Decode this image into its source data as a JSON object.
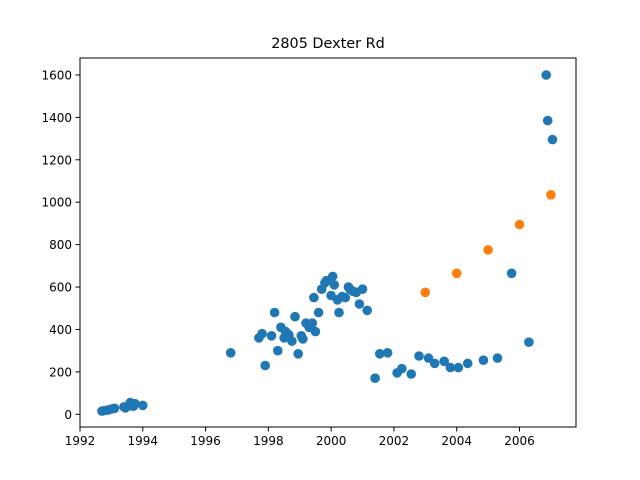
{
  "chart_data": {
    "type": "scatter",
    "title": "2805 Dexter Rd",
    "xlabel": "",
    "ylabel": "",
    "xlim": [
      1992,
      2007.8
    ],
    "ylim": [
      -60,
      1680
    ],
    "x_ticks": [
      1992,
      1994,
      1996,
      1998,
      2000,
      2002,
      2004,
      2006
    ],
    "y_ticks": [
      0,
      200,
      400,
      600,
      800,
      1000,
      1200,
      1400,
      1600
    ],
    "grid": false,
    "legend": "none",
    "series": [
      {
        "color": "#1f77b4",
        "points": [
          [
            1992.7,
            15
          ],
          [
            1992.8,
            18
          ],
          [
            1992.9,
            20
          ],
          [
            1993.0,
            25
          ],
          [
            1993.1,
            28
          ],
          [
            1993.4,
            35
          ],
          [
            1993.45,
            30
          ],
          [
            1993.55,
            40
          ],
          [
            1993.6,
            55
          ],
          [
            1993.65,
            45
          ],
          [
            1993.7,
            38
          ],
          [
            1993.75,
            50
          ],
          [
            1994.0,
            42
          ],
          [
            1996.8,
            290
          ],
          [
            1997.7,
            360
          ],
          [
            1997.8,
            380
          ],
          [
            1997.9,
            230
          ],
          [
            1998.1,
            370
          ],
          [
            1998.2,
            480
          ],
          [
            1998.3,
            300
          ],
          [
            1998.4,
            410
          ],
          [
            1998.5,
            360
          ],
          [
            1998.55,
            390
          ],
          [
            1998.65,
            375
          ],
          [
            1998.75,
            345
          ],
          [
            1998.85,
            460
          ],
          [
            1998.95,
            285
          ],
          [
            1999.05,
            370
          ],
          [
            1999.1,
            355
          ],
          [
            1999.2,
            430
          ],
          [
            1999.3,
            410
          ],
          [
            1999.4,
            430
          ],
          [
            1999.45,
            550
          ],
          [
            1999.5,
            390
          ],
          [
            1999.6,
            480
          ],
          [
            1999.7,
            590
          ],
          [
            1999.8,
            620
          ],
          [
            1999.85,
            630
          ],
          [
            2000.0,
            560
          ],
          [
            2000.05,
            650
          ],
          [
            2000.1,
            610
          ],
          [
            2000.2,
            540
          ],
          [
            2000.25,
            480
          ],
          [
            2000.35,
            555
          ],
          [
            2000.45,
            550
          ],
          [
            2000.55,
            600
          ],
          [
            2000.6,
            590
          ],
          [
            2000.7,
            580
          ],
          [
            2000.8,
            575
          ],
          [
            2000.9,
            520
          ],
          [
            2001.0,
            590
          ],
          [
            2001.15,
            490
          ],
          [
            2001.4,
            170
          ],
          [
            2001.55,
            285
          ],
          [
            2001.8,
            290
          ],
          [
            2002.1,
            195
          ],
          [
            2002.25,
            215
          ],
          [
            2002.55,
            190
          ],
          [
            2002.8,
            275
          ],
          [
            2003.1,
            265
          ],
          [
            2003.3,
            240
          ],
          [
            2003.6,
            250
          ],
          [
            2003.8,
            220
          ],
          [
            2004.05,
            220
          ],
          [
            2004.35,
            240
          ],
          [
            2004.85,
            255
          ],
          [
            2005.3,
            265
          ],
          [
            2005.75,
            665
          ],
          [
            2006.3,
            340
          ],
          [
            2006.85,
            1600
          ],
          [
            2006.9,
            1385
          ],
          [
            2007.05,
            1295
          ]
        ]
      },
      {
        "color": "#ff7f0e",
        "points": [
          [
            2003.0,
            575
          ],
          [
            2004.0,
            665
          ],
          [
            2005.0,
            775
          ],
          [
            2006.0,
            895
          ],
          [
            2007.0,
            1035
          ]
        ]
      }
    ]
  }
}
